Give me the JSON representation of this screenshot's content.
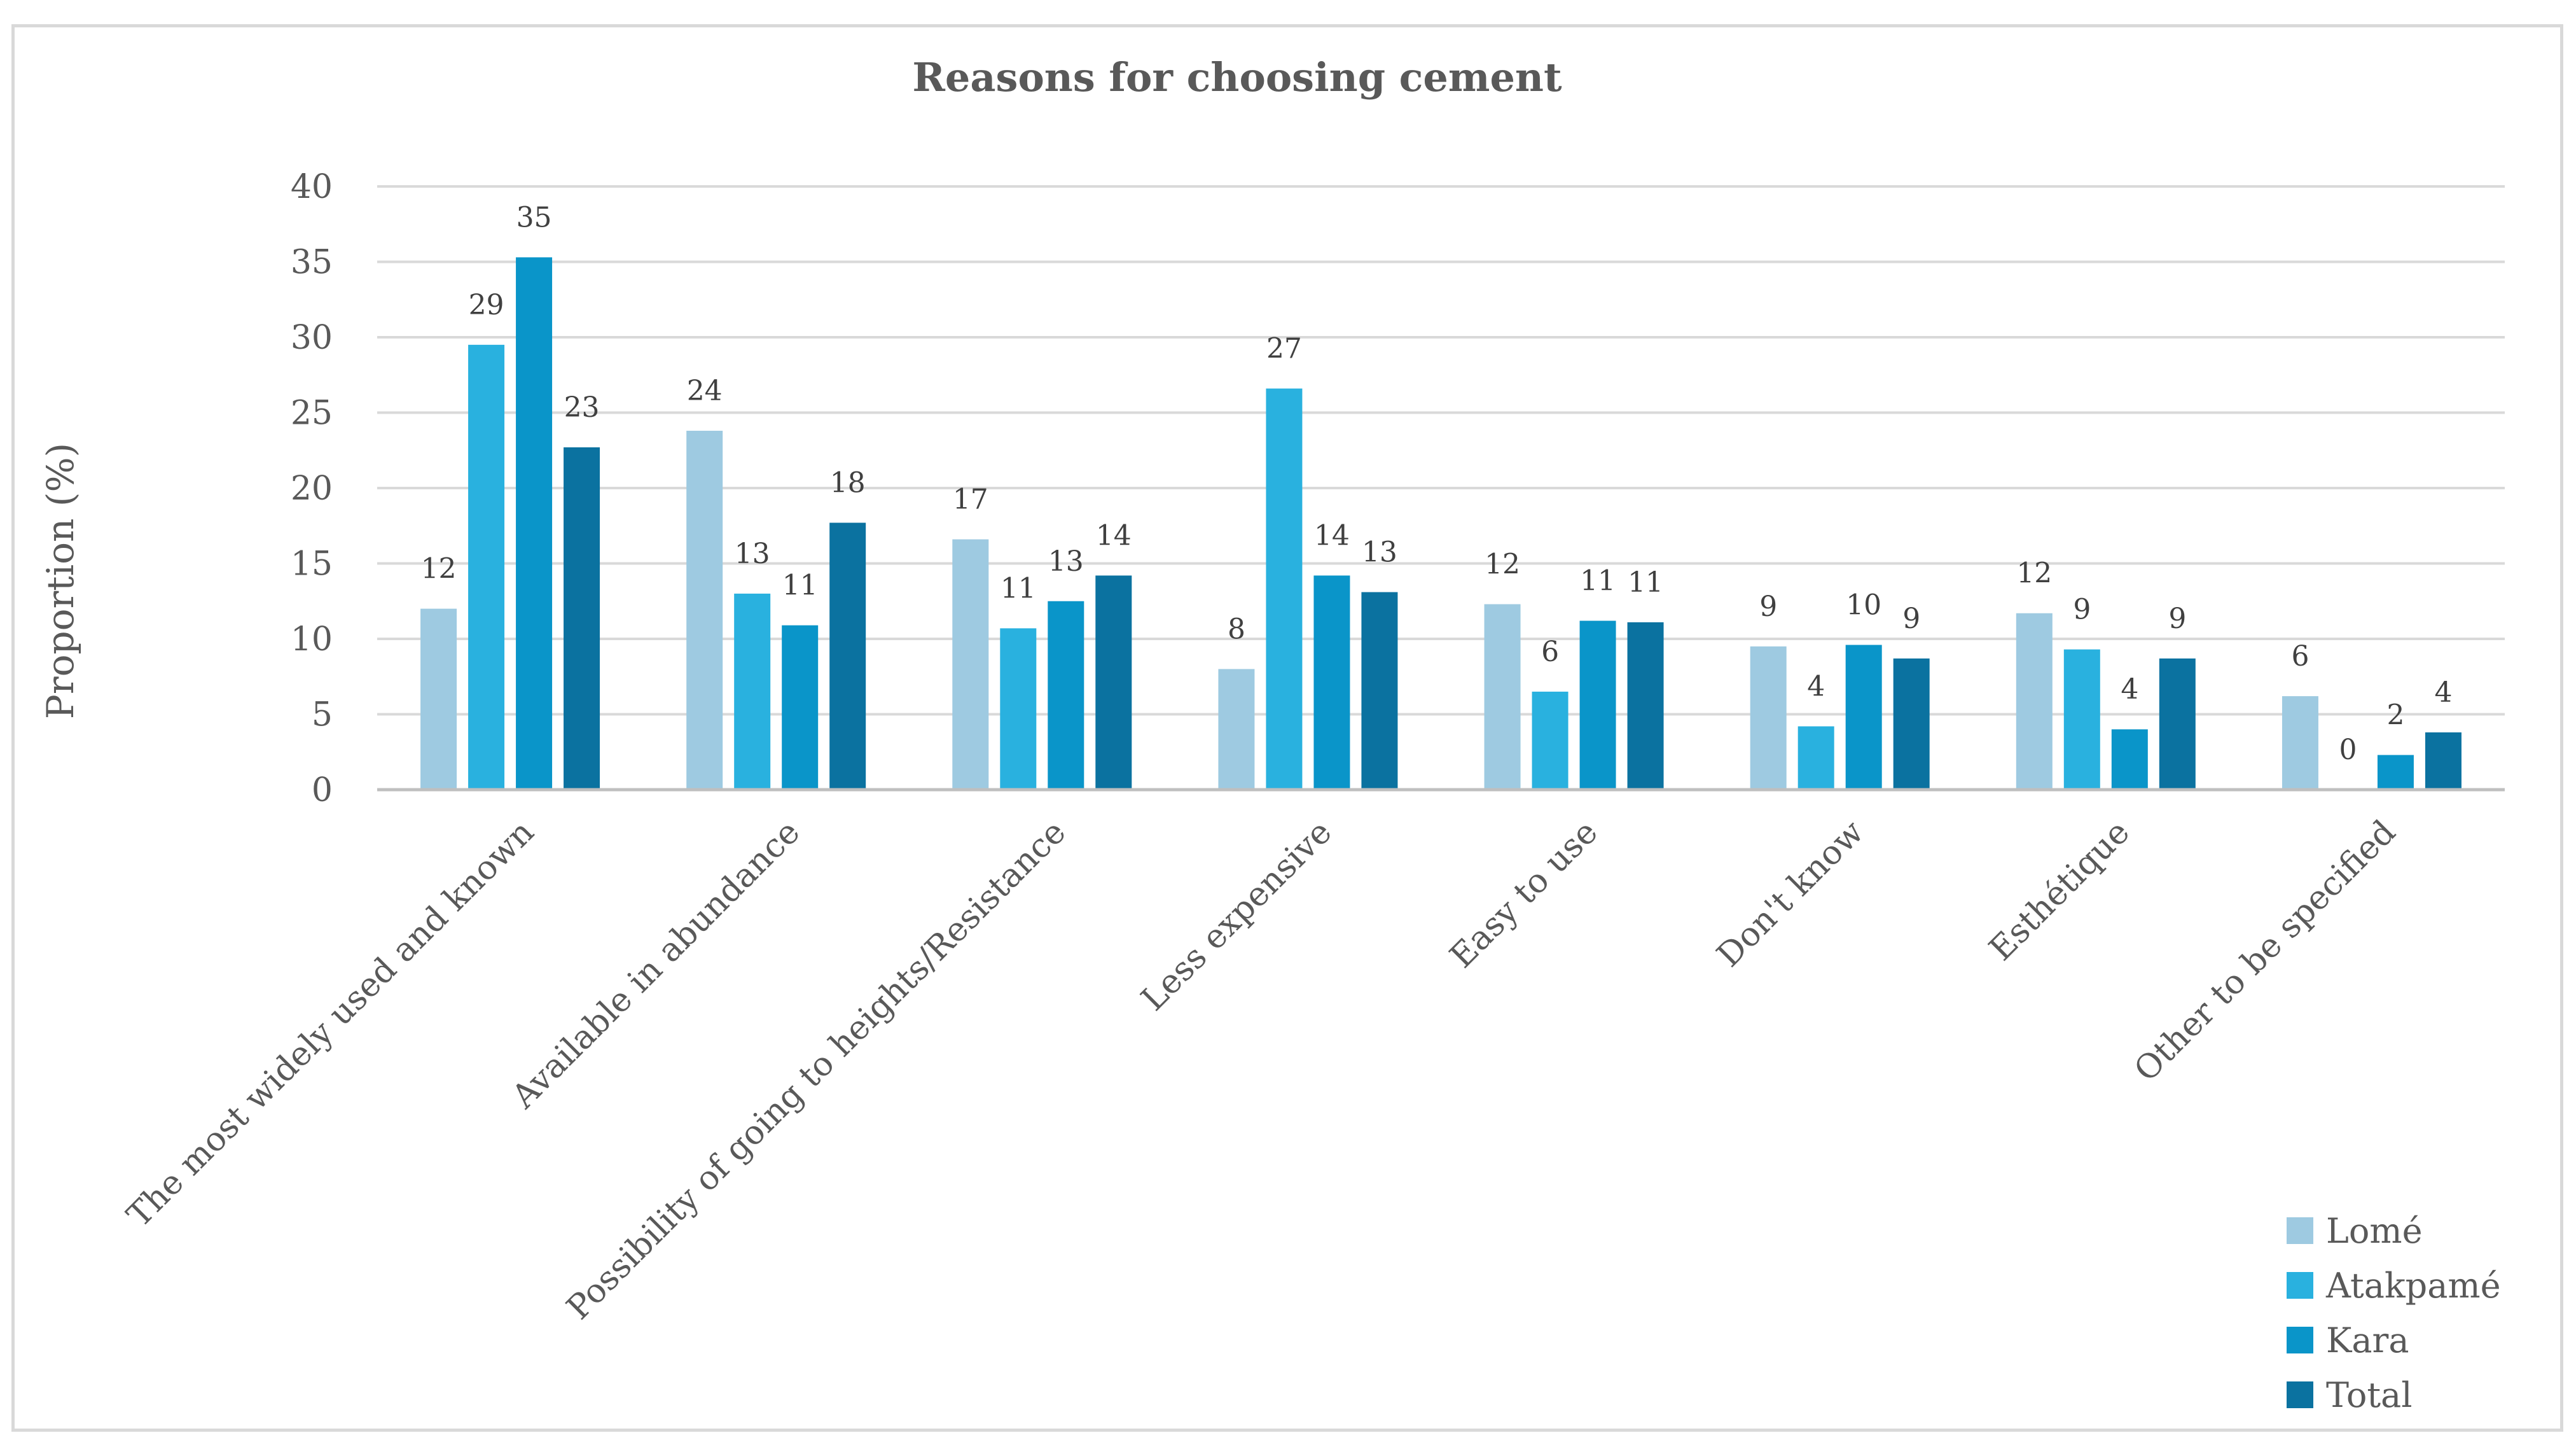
{
  "chart_data": {
    "type": "bar",
    "title": "Reasons for choosing cement",
    "xlabel": "",
    "ylabel": "Proportion (%)",
    "ylim": [
      0,
      40
    ],
    "yticks": [
      0,
      5,
      10,
      15,
      20,
      25,
      30,
      35,
      40
    ],
    "grid": true,
    "legend_position": "bottom-right",
    "categories": [
      "The most widely used and known",
      "Available in abundance",
      "Possibility of going to heights/Resistance",
      "Less expensive",
      "Easy to use",
      "Don't know",
      "Esthétique",
      "Other to be specified"
    ],
    "series": [
      {
        "name": "Lomé",
        "color": "#9ecae1",
        "values": [
          12,
          24,
          17,
          8,
          12,
          9,
          12,
          6
        ],
        "heights": [
          12,
          23.8,
          16.6,
          8,
          12.3,
          9.5,
          11.7,
          6.2
        ]
      },
      {
        "name": "Atakpamé",
        "color": "#29b1df",
        "values": [
          29,
          13,
          11,
          27,
          6,
          4,
          9,
          0
        ],
        "heights": [
          29.5,
          13,
          10.7,
          26.6,
          6.5,
          4.2,
          9.3,
          0
        ]
      },
      {
        "name": "Kara",
        "color": "#0a95c9",
        "values": [
          35,
          11,
          13,
          14,
          11,
          10,
          4,
          2
        ],
        "heights": [
          35.3,
          10.9,
          12.5,
          14.2,
          11.2,
          9.6,
          4,
          2.3
        ]
      },
      {
        "name": "Total",
        "color": "#0b72a0",
        "values": [
          23,
          18,
          14,
          13,
          11,
          9,
          9,
          4
        ],
        "heights": [
          22.7,
          17.7,
          14.2,
          13.1,
          11.1,
          8.7,
          8.7,
          3.8
        ]
      }
    ]
  }
}
